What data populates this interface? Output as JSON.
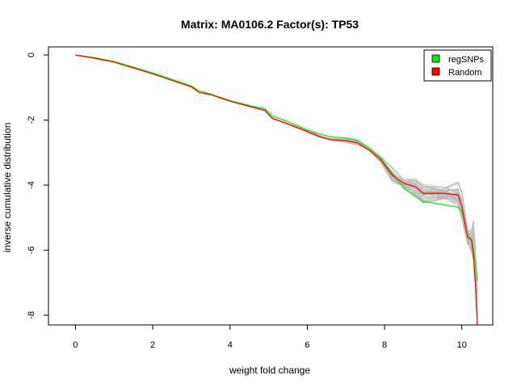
{
  "chart_data": {
    "type": "line",
    "title": "Matrix: MA0106.2 Factor(s): TP53",
    "xlabel": "weight fold change",
    "ylabel": "inverse cumulative distribution",
    "xlim": [
      -0.7,
      10.8
    ],
    "ylim": [
      -8.3,
      0.25
    ],
    "x_ticks": [
      0,
      2,
      4,
      6,
      8,
      10
    ],
    "y_ticks": [
      0,
      -2,
      -4,
      -6,
      -8
    ],
    "legend_position": "top-right",
    "grid": false,
    "colors": {
      "regsnps": "#00ee00",
      "random": "#ff0000",
      "background": "#bbbbbb"
    },
    "series": [
      {
        "name": "regSNPs",
        "color": "#00ee00",
        "x": [
          0,
          0.5,
          1.0,
          1.5,
          2.0,
          2.5,
          3.0,
          3.2,
          3.5,
          4.0,
          4.5,
          4.9,
          5.1,
          5.5,
          6.0,
          6.3,
          6.6,
          7.0,
          7.3,
          7.6,
          7.9,
          8.2,
          8.5,
          8.8,
          9.0,
          9.5,
          9.9,
          10.0,
          10.15,
          10.25,
          10.3,
          10.35,
          10.4
        ],
        "y": [
          0,
          -0.08,
          -0.2,
          -0.37,
          -0.55,
          -0.75,
          -0.95,
          -1.1,
          -1.2,
          -1.4,
          -1.55,
          -1.65,
          -1.88,
          -2.05,
          -2.3,
          -2.42,
          -2.52,
          -2.55,
          -2.62,
          -2.85,
          -3.15,
          -3.65,
          -4.1,
          -4.35,
          -4.5,
          -4.6,
          -4.68,
          -4.8,
          -5.55,
          -5.65,
          -6.0,
          -6.4,
          -6.95
        ]
      },
      {
        "name": "Random",
        "color": "#ff0000",
        "x": [
          0,
          0.5,
          1.0,
          1.5,
          2.0,
          2.5,
          3.0,
          3.2,
          3.5,
          4.0,
          4.5,
          4.9,
          5.1,
          5.5,
          6.0,
          6.3,
          6.6,
          7.0,
          7.3,
          7.6,
          7.9,
          8.2,
          8.5,
          8.8,
          9.0,
          9.5,
          9.9,
          10.0,
          10.15,
          10.25,
          10.3,
          10.35,
          10.4
        ],
        "y": [
          0,
          -0.1,
          -0.22,
          -0.4,
          -0.58,
          -0.78,
          -0.98,
          -1.15,
          -1.22,
          -1.42,
          -1.58,
          -1.7,
          -1.95,
          -2.12,
          -2.35,
          -2.5,
          -2.6,
          -2.63,
          -2.7,
          -2.92,
          -3.22,
          -3.7,
          -3.95,
          -4.05,
          -4.25,
          -4.25,
          -4.3,
          -4.65,
          -5.6,
          -5.7,
          -6.15,
          -7.0,
          -8.3
        ]
      }
    ]
  }
}
